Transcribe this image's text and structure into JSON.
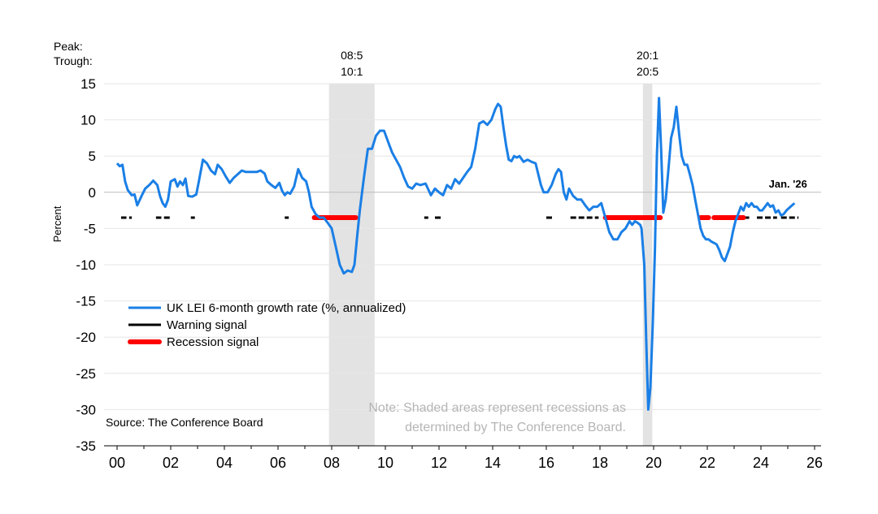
{
  "chart_data": {
    "type": "line",
    "ylabel": "Percent",
    "ylim": [
      -35,
      15
    ],
    "yticks": [
      15,
      10,
      5,
      0,
      -5,
      -10,
      -15,
      -20,
      -25,
      -30,
      -35
    ],
    "xlim": [
      2000.0,
      2026.5
    ],
    "xticks": [
      {
        "value": 2000,
        "label": "00"
      },
      {
        "value": 2002,
        "label": "02"
      },
      {
        "value": 2004,
        "label": "04"
      },
      {
        "value": 2006,
        "label": "06"
      },
      {
        "value": 2008,
        "label": "08"
      },
      {
        "value": 2010,
        "label": "10"
      },
      {
        "value": 2012,
        "label": "12"
      },
      {
        "value": 2014,
        "label": "14"
      },
      {
        "value": 2016,
        "label": "16"
      },
      {
        "value": 2018,
        "label": "18"
      },
      {
        "value": 2020,
        "label": "20"
      },
      {
        "value": 2022,
        "label": "22"
      },
      {
        "value": 2024,
        "label": "24"
      },
      {
        "value": 2026,
        "label": "26"
      }
    ],
    "grid": true,
    "peak_label": "Peak:",
    "trough_label": "Trough:",
    "recessions": [
      {
        "start": 2007.9,
        "end": 2009.6,
        "peak": "08:5",
        "trough": "10:1"
      },
      {
        "start": 2019.6,
        "end": 2019.95,
        "peak": "20:1",
        "trough": "20:5"
      }
    ],
    "series": [
      {
        "name": "UK LEI 6-month growth rate (%, annualized)",
        "color": "#1a7fe6",
        "points": [
          [
            2000.0,
            4.0
          ],
          [
            2000.1,
            3.6
          ],
          [
            2000.2,
            3.8
          ],
          [
            2000.3,
            1.5
          ],
          [
            2000.4,
            0.3
          ],
          [
            2000.55,
            -0.4
          ],
          [
            2000.65,
            -0.3
          ],
          [
            2000.75,
            -1.8
          ],
          [
            2000.9,
            -0.6
          ],
          [
            2001.05,
            0.5
          ],
          [
            2001.2,
            1.0
          ],
          [
            2001.35,
            1.6
          ],
          [
            2001.5,
            1.0
          ],
          [
            2001.6,
            -0.5
          ],
          [
            2001.7,
            -1.5
          ],
          [
            2001.8,
            -2.0
          ],
          [
            2001.9,
            -1.0
          ],
          [
            2002.0,
            1.5
          ],
          [
            2002.15,
            1.8
          ],
          [
            2002.25,
            0.8
          ],
          [
            2002.35,
            1.5
          ],
          [
            2002.45,
            1.0
          ],
          [
            2002.55,
            1.9
          ],
          [
            2002.65,
            -0.5
          ],
          [
            2002.8,
            -0.6
          ],
          [
            2002.95,
            -0.3
          ],
          [
            2003.05,
            1.5
          ],
          [
            2003.2,
            4.5
          ],
          [
            2003.35,
            4.0
          ],
          [
            2003.5,
            3.0
          ],
          [
            2003.65,
            2.5
          ],
          [
            2003.75,
            3.8
          ],
          [
            2003.9,
            3.2
          ],
          [
            2004.05,
            2.2
          ],
          [
            2004.2,
            1.3
          ],
          [
            2004.35,
            2.0
          ],
          [
            2004.5,
            2.5
          ],
          [
            2004.65,
            3.0
          ],
          [
            2004.8,
            2.8
          ],
          [
            2005.0,
            2.8
          ],
          [
            2005.2,
            2.8
          ],
          [
            2005.35,
            3.0
          ],
          [
            2005.5,
            2.6
          ],
          [
            2005.6,
            1.5
          ],
          [
            2005.75,
            1.0
          ],
          [
            2005.9,
            0.6
          ],
          [
            2006.05,
            1.3
          ],
          [
            2006.15,
            0.2
          ],
          [
            2006.25,
            -0.4
          ],
          [
            2006.35,
            0.0
          ],
          [
            2006.45,
            -0.2
          ],
          [
            2006.6,
            0.8
          ],
          [
            2006.75,
            3.2
          ],
          [
            2006.9,
            2.0
          ],
          [
            2007.05,
            1.5
          ],
          [
            2007.15,
            0.0
          ],
          [
            2007.25,
            -2.0
          ],
          [
            2007.4,
            -3.0
          ],
          [
            2007.55,
            -3.5
          ],
          [
            2007.7,
            -3.5
          ],
          [
            2007.85,
            -4.2
          ],
          [
            2008.0,
            -5.0
          ],
          [
            2008.15,
            -7.5
          ],
          [
            2008.3,
            -10.0
          ],
          [
            2008.45,
            -11.2
          ],
          [
            2008.6,
            -10.8
          ],
          [
            2008.75,
            -11.0
          ],
          [
            2008.85,
            -10.0
          ],
          [
            2008.95,
            -6.0
          ],
          [
            2009.05,
            -2.5
          ],
          [
            2009.2,
            2.0
          ],
          [
            2009.35,
            6.0
          ],
          [
            2009.5,
            6.0
          ],
          [
            2009.65,
            7.8
          ],
          [
            2009.8,
            8.5
          ],
          [
            2009.95,
            8.5
          ],
          [
            2010.1,
            7.0
          ],
          [
            2010.25,
            5.5
          ],
          [
            2010.4,
            4.5
          ],
          [
            2010.55,
            3.5
          ],
          [
            2010.7,
            2.0
          ],
          [
            2010.85,
            0.8
          ],
          [
            2011.0,
            0.5
          ],
          [
            2011.15,
            1.2
          ],
          [
            2011.3,
            1.0
          ],
          [
            2011.5,
            1.2
          ],
          [
            2011.6,
            0.4
          ],
          [
            2011.7,
            -0.4
          ],
          [
            2011.85,
            0.5
          ],
          [
            2012.0,
            0.0
          ],
          [
            2012.15,
            -0.4
          ],
          [
            2012.3,
            1.0
          ],
          [
            2012.45,
            0.5
          ],
          [
            2012.6,
            1.8
          ],
          [
            2012.75,
            1.2
          ],
          [
            2012.9,
            2.0
          ],
          [
            2013.05,
            2.8
          ],
          [
            2013.2,
            3.5
          ],
          [
            2013.35,
            6.0
          ],
          [
            2013.5,
            9.5
          ],
          [
            2013.65,
            9.8
          ],
          [
            2013.8,
            9.3
          ],
          [
            2013.95,
            10.0
          ],
          [
            2014.1,
            11.5
          ],
          [
            2014.2,
            12.2
          ],
          [
            2014.3,
            11.8
          ],
          [
            2014.4,
            9.0
          ],
          [
            2014.5,
            6.5
          ],
          [
            2014.6,
            4.5
          ],
          [
            2014.7,
            4.3
          ],
          [
            2014.8,
            5.0
          ],
          [
            2014.9,
            4.8
          ],
          [
            2015.0,
            5.0
          ],
          [
            2015.15,
            4.2
          ],
          [
            2015.3,
            4.5
          ],
          [
            2015.45,
            4.2
          ],
          [
            2015.6,
            4.0
          ],
          [
            2015.7,
            2.5
          ],
          [
            2015.8,
            1.0
          ],
          [
            2015.9,
            0.0
          ],
          [
            2016.05,
            0.0
          ],
          [
            2016.2,
            1.0
          ],
          [
            2016.35,
            2.5
          ],
          [
            2016.45,
            3.2
          ],
          [
            2016.55,
            2.8
          ],
          [
            2016.65,
            0.0
          ],
          [
            2016.75,
            -1.0
          ],
          [
            2016.85,
            0.5
          ],
          [
            2017.0,
            -0.5
          ],
          [
            2017.15,
            -1.0
          ],
          [
            2017.3,
            -1.0
          ],
          [
            2017.45,
            -1.8
          ],
          [
            2017.6,
            -2.5
          ],
          [
            2017.75,
            -2.0
          ],
          [
            2017.9,
            -2.0
          ],
          [
            2018.05,
            -1.5
          ],
          [
            2018.2,
            -3.5
          ],
          [
            2018.35,
            -5.5
          ],
          [
            2018.5,
            -6.5
          ],
          [
            2018.65,
            -6.5
          ],
          [
            2018.8,
            -5.5
          ],
          [
            2018.95,
            -5.0
          ],
          [
            2019.1,
            -4.0
          ],
          [
            2019.2,
            -4.5
          ],
          [
            2019.3,
            -4.0
          ],
          [
            2019.4,
            -4.2
          ],
          [
            2019.5,
            -4.5
          ],
          [
            2019.55,
            -5.0
          ],
          [
            2019.65,
            -10.0
          ],
          [
            2019.72,
            -20.0
          ],
          [
            2019.8,
            -30.0
          ],
          [
            2019.88,
            -27.0
          ],
          [
            2019.97,
            -18.0
          ],
          [
            2020.05,
            -8.0
          ],
          [
            2020.12,
            5.0
          ],
          [
            2020.2,
            13.0
          ],
          [
            2020.28,
            6.0
          ],
          [
            2020.36,
            -2.8
          ],
          [
            2020.45,
            -1.0
          ],
          [
            2020.55,
            3.0
          ],
          [
            2020.65,
            7.5
          ],
          [
            2020.75,
            9.0
          ],
          [
            2020.85,
            11.8
          ],
          [
            2020.95,
            8.0
          ],
          [
            2021.05,
            5.0
          ],
          [
            2021.15,
            3.8
          ],
          [
            2021.25,
            3.8
          ],
          [
            2021.35,
            2.5
          ],
          [
            2021.45,
            1.0
          ],
          [
            2021.55,
            -1.0
          ],
          [
            2021.65,
            -3.0
          ],
          [
            2021.75,
            -5.0
          ],
          [
            2021.85,
            -6.0
          ],
          [
            2021.95,
            -6.5
          ],
          [
            2022.05,
            -6.5
          ],
          [
            2022.15,
            -6.8
          ],
          [
            2022.25,
            -7.0
          ],
          [
            2022.35,
            -7.2
          ],
          [
            2022.45,
            -8.0
          ],
          [
            2022.55,
            -9.0
          ],
          [
            2022.65,
            -9.5
          ],
          [
            2022.75,
            -8.5
          ],
          [
            2022.85,
            -7.5
          ],
          [
            2022.95,
            -5.5
          ],
          [
            2023.05,
            -4.0
          ],
          [
            2023.15,
            -3.0
          ],
          [
            2023.25,
            -2.0
          ],
          [
            2023.35,
            -2.5
          ],
          [
            2023.45,
            -1.5
          ],
          [
            2023.55,
            -2.0
          ],
          [
            2023.65,
            -1.5
          ],
          [
            2023.75,
            -2.0
          ],
          [
            2023.85,
            -2.0
          ],
          [
            2023.95,
            -2.5
          ],
          [
            2024.05,
            -2.5
          ],
          [
            2024.15,
            -2.0
          ],
          [
            2024.25,
            -1.5
          ],
          [
            2024.35,
            -2.0
          ],
          [
            2024.45,
            -1.8
          ],
          [
            2024.55,
            -2.8
          ],
          [
            2024.65,
            -2.5
          ],
          [
            2024.75,
            -3.2
          ],
          [
            2024.85,
            -3.0
          ],
          [
            2024.95,
            -2.5
          ],
          [
            2025.1,
            -2.0
          ],
          [
            2025.25,
            -1.5
          ]
        ]
      },
      {
        "name": "Warning signal",
        "color": "#000000",
        "y": -3.5,
        "segments": [
          [
            2000.15,
            2000.35
          ],
          [
            2000.45,
            2000.55
          ],
          [
            2001.45,
            2001.65
          ],
          [
            2001.75,
            2002.05
          ],
          [
            2002.75,
            2002.9
          ],
          [
            2006.25,
            2006.4
          ],
          [
            2011.45,
            2011.6
          ],
          [
            2011.85,
            2012.1
          ],
          [
            2016.0,
            2016.25
          ],
          [
            2016.9,
            2017.95
          ],
          [
            2022.35,
            2022.6
          ],
          [
            2023.35,
            2023.6
          ],
          [
            2023.85,
            2024.6
          ],
          [
            2024.75,
            2025.4
          ]
        ]
      },
      {
        "name": "Recession signal",
        "color": "#ff0000",
        "y": -3.5,
        "segments": [
          [
            2007.35,
            2008.9
          ],
          [
            2018.2,
            2020.25
          ],
          [
            2021.75,
            2022.05
          ],
          [
            2022.25,
            2023.35
          ]
        ]
      }
    ],
    "annotations": [
      {
        "text": "Jan. '26",
        "x": 2025.25,
        "y": 0.0,
        "bold": true
      }
    ],
    "source": "Source: The Conference Board",
    "note": [
      "Note: Shaded areas represent recessions as",
      "determined by The Conference Board."
    ]
  }
}
